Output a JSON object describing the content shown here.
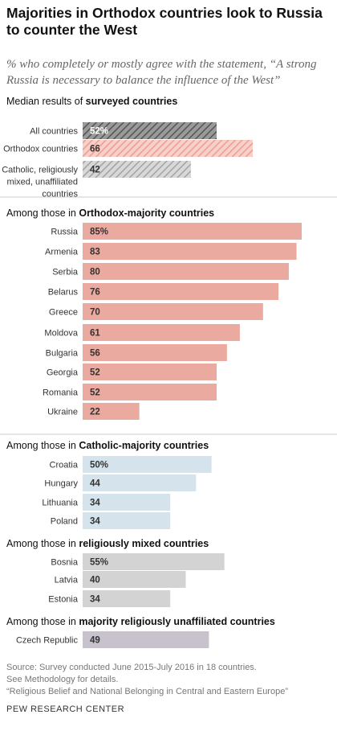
{
  "title": "Majorities in Orthodox countries look to Russia to counter the West",
  "subtitle": "% who completely or mostly agree with the statement, “A strong Russia is necessary to balance the influence of the West”",
  "colors": {
    "median": "#6e6e6e",
    "orthodox": "#ebaaa0",
    "catholic": "#d4e3ec",
    "mixed": "#d3d3d3",
    "unaffiliated": "#c8c2cd",
    "divider": "#cccccc"
  },
  "chart_data": {
    "type": "bar",
    "orientation": "horizontal",
    "xlim": [
      0,
      85
    ],
    "groups": [
      {
        "heading_prefix": "Median results of ",
        "heading_bold": "surveyed countries",
        "categories": [
          "All countries",
          "Orthodox countries",
          "Catholic, religiously mixed, unaffiliated countries"
        ],
        "values": [
          52,
          66,
          42
        ],
        "labels": [
          "52%",
          "66",
          "42"
        ],
        "patterns": [
          "hatch-dark",
          "hatch-red",
          "hatch-gray"
        ]
      },
      {
        "heading_prefix": "Among those in ",
        "heading_bold": "Orthodox-majority countries",
        "color": "orthodox",
        "categories": [
          "Russia",
          "Armenia",
          "Serbia",
          "Belarus",
          "Greece",
          "Moldova",
          "Bulgaria",
          "Georgia",
          "Romania",
          "Ukraine"
        ],
        "values": [
          85,
          83,
          80,
          76,
          70,
          61,
          56,
          52,
          52,
          22
        ],
        "labels": [
          "85%",
          "83",
          "80",
          "76",
          "70",
          "61",
          "56",
          "52",
          "52",
          "22"
        ]
      },
      {
        "heading_prefix": "Among those in ",
        "heading_bold": "Catholic-majority countries",
        "color": "catholic",
        "categories": [
          "Croatia",
          "Hungary",
          "Lithuania",
          "Poland"
        ],
        "values": [
          50,
          44,
          34,
          34
        ],
        "labels": [
          "50%",
          "44",
          "34",
          "34"
        ]
      },
      {
        "heading_prefix": "Among those in ",
        "heading_bold": "religiously mixed countries",
        "color": "mixed",
        "categories": [
          "Bosnia",
          "Latvia",
          "Estonia"
        ],
        "values": [
          55,
          40,
          34
        ],
        "labels": [
          "55%",
          "40",
          "34"
        ]
      },
      {
        "heading_prefix": "Among those in ",
        "heading_bold": "majority religiously unaffiliated countries",
        "color": "unaffiliated",
        "categories": [
          "Czech Republic"
        ],
        "values": [
          49
        ],
        "labels": [
          "49"
        ]
      }
    ]
  },
  "footer": {
    "source": "Source: Survey conducted June 2015-July 2016 in 18 countries.",
    "note": "See Methodology for details.",
    "report": "“Religious Belief and National Belonging in Central and Eastern Europe”"
  },
  "brand": "PEW RESEARCH CENTER"
}
